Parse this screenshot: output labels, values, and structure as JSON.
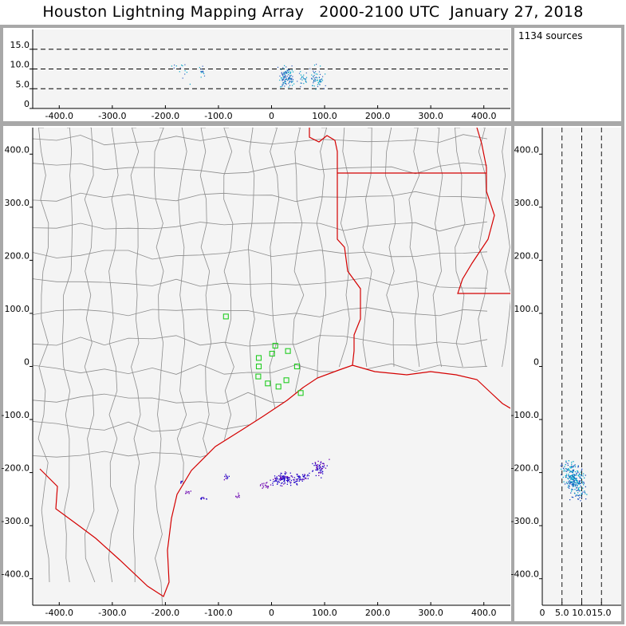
{
  "title": "Houston Lightning Mapping Array   2000-2100 UTC  January 27, 2018",
  "source_count_label": "1134 sources",
  "colors": {
    "background": "#f4f4f4",
    "panel_border": "#a8a8a8",
    "county_lines": "#8c8c8c",
    "state_lines": "#d40000",
    "stations": "#22cc22",
    "sources_early": "#1a00c8",
    "sources_late": "#00a6c8"
  },
  "chart_data": [
    {
      "panel": "plan-view",
      "type": "scatter",
      "x_range": [
        -450,
        450
      ],
      "y_range": [
        -450,
        450
      ],
      "x_ticks": [
        "-400.0",
        "-300.0",
        "-200.0",
        "-100.0",
        "0",
        "100.0",
        "200.0",
        "300.0",
        "400.0"
      ],
      "y_ticks": [
        "400.0",
        "300.0",
        "200.0",
        "100.0",
        "0",
        "-100.0",
        "-200.0",
        "-300.0",
        "-400.0"
      ],
      "map_overlay": "county and state boundaries, Texas / Louisiana Gulf coast",
      "stations": [
        {
          "x": -86,
          "y": 94
        },
        {
          "x": -24,
          "y": 16
        },
        {
          "x": 1,
          "y": 24
        },
        {
          "x": 7,
          "y": 39
        },
        {
          "x": 31,
          "y": 29
        },
        {
          "x": 48,
          "y": 0
        },
        {
          "x": -24,
          "y": 0
        },
        {
          "x": -25,
          "y": -19
        },
        {
          "x": -7,
          "y": -32
        },
        {
          "x": 28,
          "y": -26
        },
        {
          "x": 13,
          "y": -38
        },
        {
          "x": 55,
          "y": -50
        }
      ],
      "source_clusters": [
        {
          "x": 25,
          "y": -212,
          "spread_x": 18,
          "spread_y": 8,
          "count": 120
        },
        {
          "x": 88,
          "y": -190,
          "spread_x": 12,
          "spread_y": 10,
          "count": 60
        },
        {
          "x": 60,
          "y": -208,
          "spread_x": 10,
          "spread_y": 6,
          "count": 30
        },
        {
          "x": -12,
          "y": -225,
          "spread_x": 8,
          "spread_y": 5,
          "count": 18
        },
        {
          "x": -85,
          "y": -208,
          "spread_x": 4,
          "spread_y": 4,
          "count": 10
        },
        {
          "x": -65,
          "y": -242,
          "spread_x": 4,
          "spread_y": 3,
          "count": 8
        },
        {
          "x": -130,
          "y": -248,
          "spread_x": 5,
          "spread_y": 2,
          "count": 10
        },
        {
          "x": -160,
          "y": -235,
          "spread_x": 5,
          "spread_y": 3,
          "count": 8
        },
        {
          "x": -172,
          "y": -216,
          "spread_x": 3,
          "spread_y": 3,
          "count": 5
        }
      ]
    },
    {
      "panel": "east-west-vs-altitude",
      "type": "scatter",
      "x_range": [
        -450,
        450
      ],
      "y_range": [
        0,
        20
      ],
      "x_ticks": [
        "-400.0",
        "-300.0",
        "-200.0",
        "-100.0",
        "0",
        "100.0",
        "200.0",
        "300.0",
        "400.0"
      ],
      "y_ticks": [
        "15.0",
        "10.0",
        "5.0",
        "0"
      ],
      "reference_lines_km": [
        5,
        10,
        15
      ],
      "source_clusters": [
        {
          "x": 28,
          "y": 8,
          "spread_x": 10,
          "spread_y": 2.0,
          "count": 120
        },
        {
          "x": 85,
          "y": 8,
          "spread_x": 12,
          "spread_y": 2.0,
          "count": 60
        },
        {
          "x": 58,
          "y": 7.5,
          "spread_x": 8,
          "spread_y": 1.5,
          "count": 25
        },
        {
          "x": -130,
          "y": 9.5,
          "spread_x": 6,
          "spread_y": 1.0,
          "count": 15
        },
        {
          "x": -165,
          "y": 9,
          "spread_x": 8,
          "spread_y": 2.5,
          "count": 10
        },
        {
          "x": -185,
          "y": 11,
          "spread_x": 4,
          "spread_y": 1.0,
          "count": 4
        }
      ]
    },
    {
      "panel": "altitude-vs-north-south",
      "type": "scatter",
      "x_range": [
        0,
        20
      ],
      "y_range": [
        -450,
        450
      ],
      "x_ticks": [
        "0",
        "5.0",
        "10.0",
        "15.0"
      ],
      "y_ticks": [
        "400.0",
        "300.0",
        "200.0",
        "100.0",
        "0",
        "-100.0",
        "-200.0",
        "-300.0",
        "-400.0"
      ],
      "reference_lines_km": [
        5,
        10,
        15
      ],
      "source_clusters": [
        {
          "x": 8,
          "y": -212,
          "spread_x": 1.8,
          "spread_y": 14,
          "count": 180
        },
        {
          "x": 7,
          "y": -190,
          "spread_x": 2.0,
          "spread_y": 10,
          "count": 50
        },
        {
          "x": 9.5,
          "y": -240,
          "spread_x": 1.5,
          "spread_y": 8,
          "count": 30
        }
      ]
    }
  ]
}
